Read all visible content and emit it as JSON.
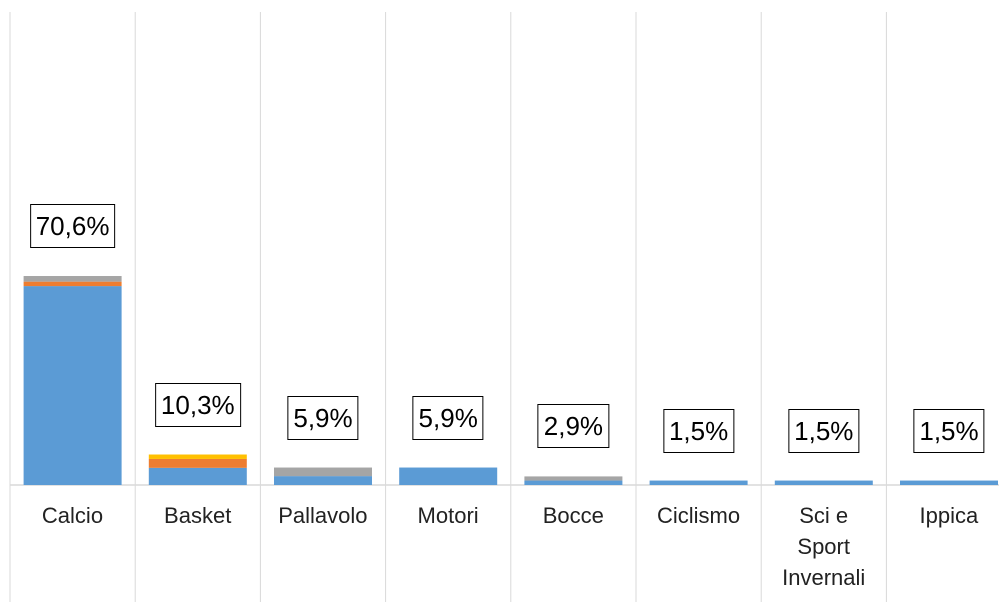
{
  "chart_data": {
    "type": "stacked_bar",
    "categories": [
      "Calcio",
      "Basket",
      "Pallavolo",
      "Motori",
      "Bocce",
      "Ciclismo",
      "Sci e Sport Invernali",
      "Ippica"
    ],
    "series": [
      {
        "color": "#5b9bd5",
        "values": [
          67.2,
          5.8,
          3.0,
          5.9,
          1.5,
          1.5,
          1.5,
          1.5
        ]
      },
      {
        "color": "#ed7d31",
        "values": [
          1.5,
          3.0,
          0,
          0,
          0,
          0,
          0,
          0
        ]
      },
      {
        "color": "#a5a5a5",
        "values": [
          1.9,
          0,
          2.9,
          0,
          1.4,
          0,
          0,
          0
        ]
      },
      {
        "color": "#ffc000",
        "values": [
          0,
          1.5,
          0,
          0,
          0,
          0,
          0,
          0
        ]
      }
    ],
    "totals": [
      70.6,
      10.3,
      5.9,
      5.9,
      2.9,
      1.5,
      1.5,
      1.5
    ],
    "total_labels": [
      "70,6%",
      "10,3%",
      "5,9%",
      "5,9%",
      "2,9%",
      "1,5%",
      "1,5%",
      "1,5%"
    ]
  }
}
